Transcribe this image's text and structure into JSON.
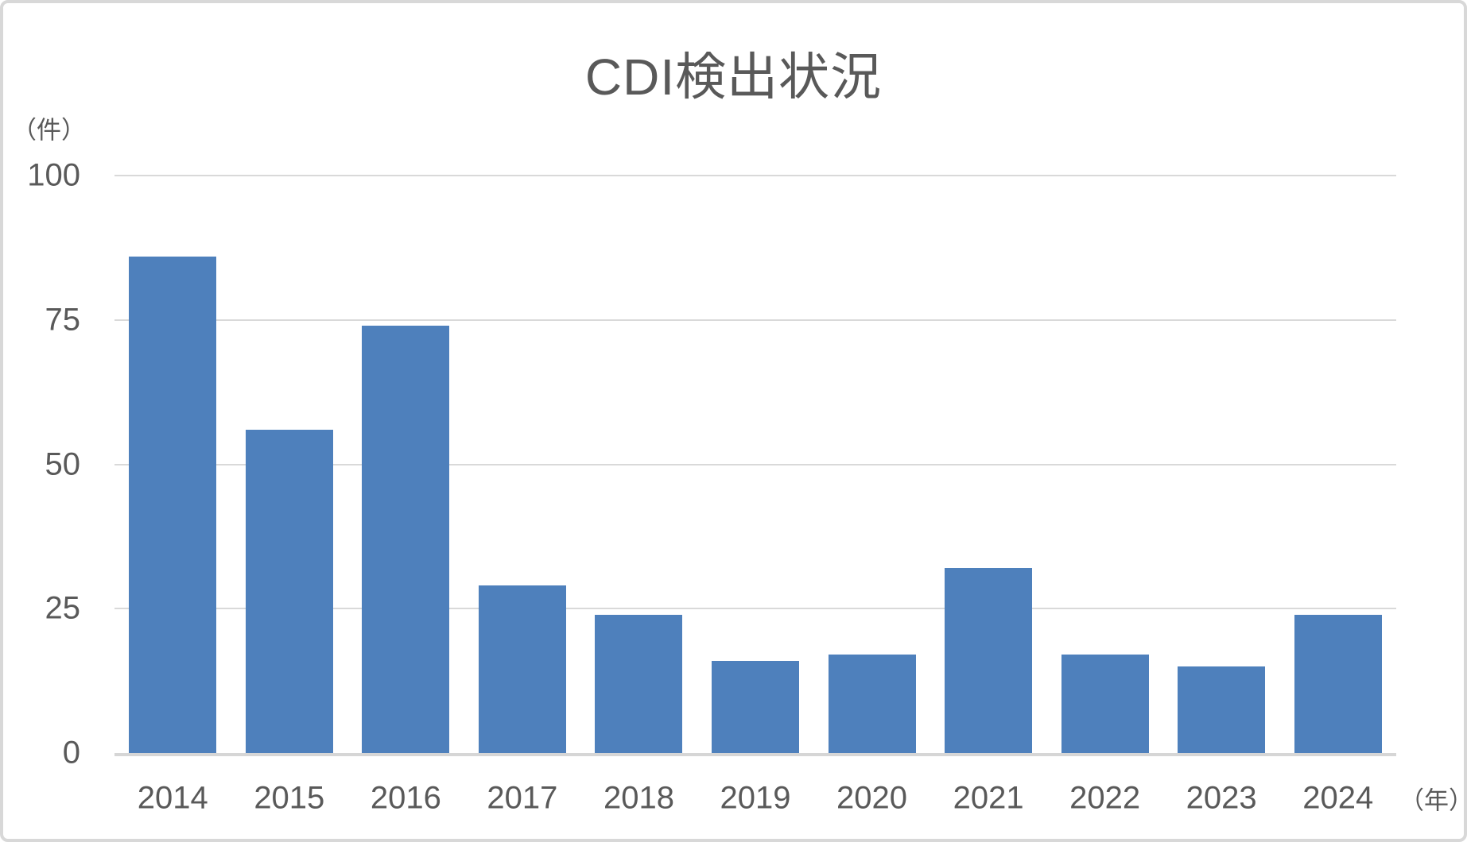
{
  "chart_data": {
    "type": "bar",
    "title": "CDI検出状況",
    "categories": [
      "2014",
      "2015",
      "2016",
      "2017",
      "2018",
      "2019",
      "2020",
      "2021",
      "2022",
      "2023",
      "2024"
    ],
    "values": [
      86,
      56,
      74,
      29,
      24,
      16,
      17,
      32,
      17,
      15,
      24
    ],
    "xlabel": "（年）",
    "ylabel": "（件）",
    "ylim": [
      0,
      100
    ],
    "yticks": [
      0,
      25,
      50,
      75,
      100
    ],
    "grid": true,
    "legend": false,
    "bar_color": "#4e80bc",
    "text_color": "#595959",
    "gridline_color": "#d9d9d9"
  }
}
